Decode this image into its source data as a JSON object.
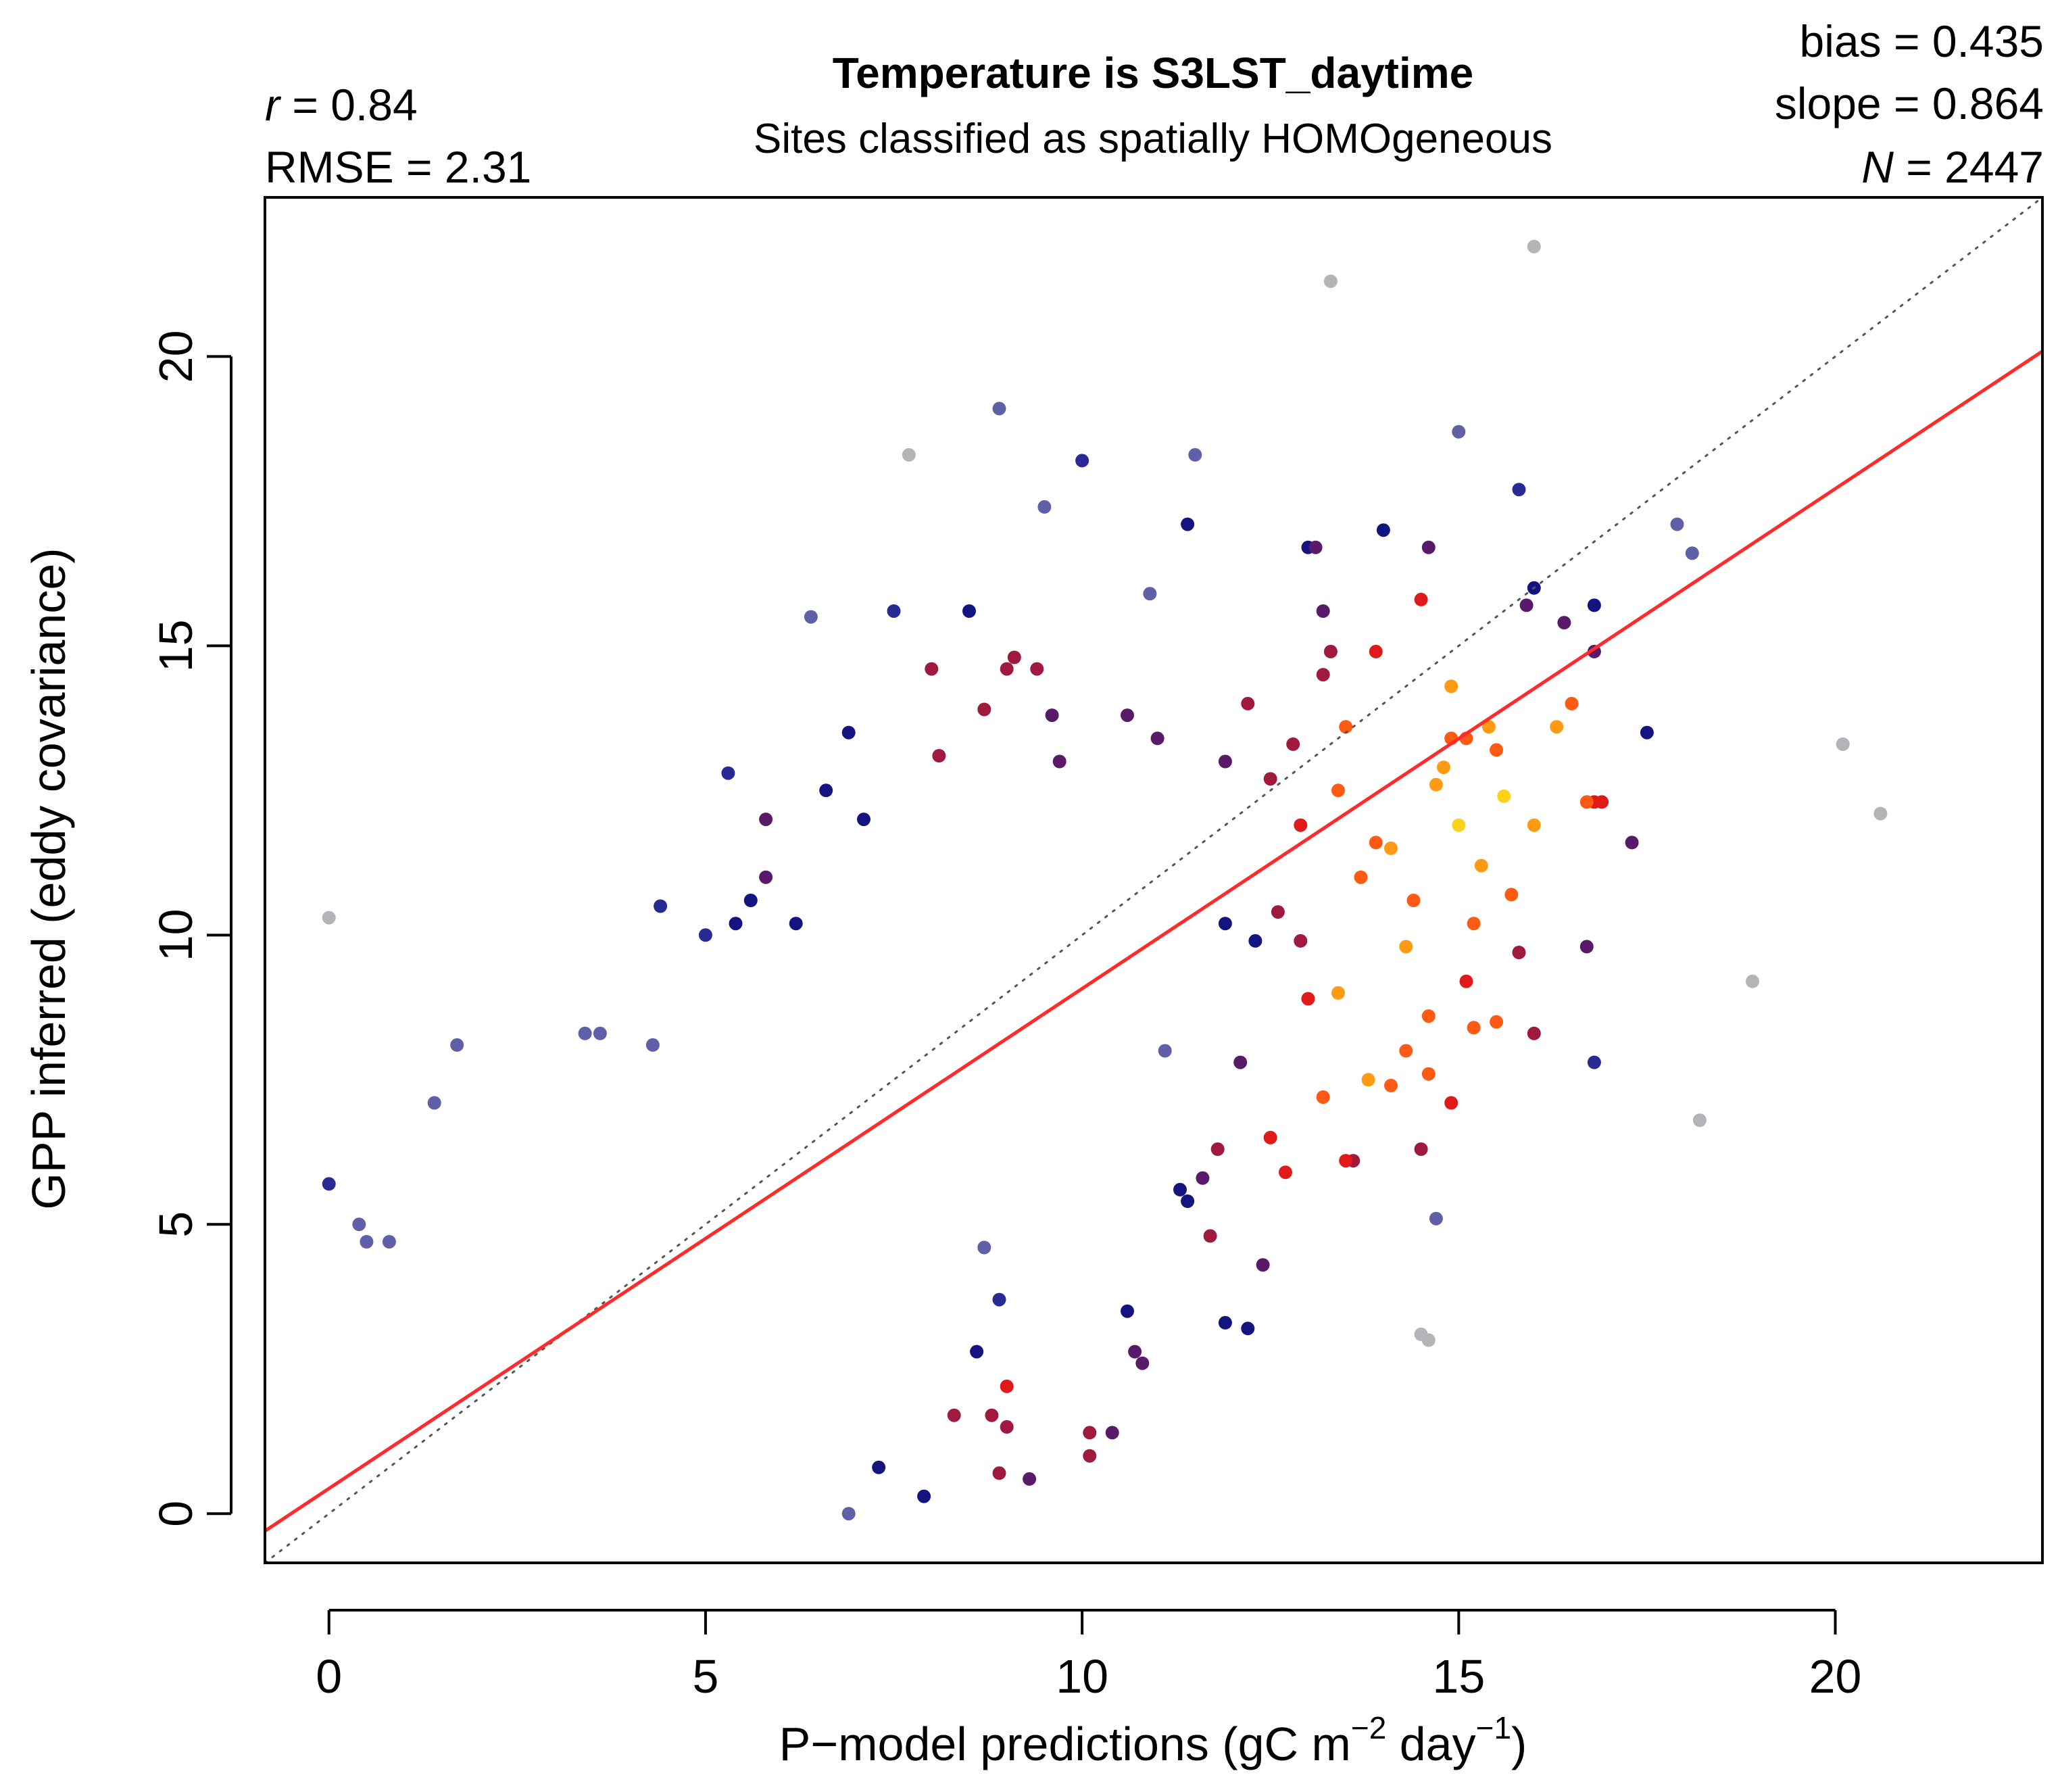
{
  "chart_data": {
    "type": "scatter",
    "title": "Temperature is S3LST_daytime",
    "subtitle": "Sites classified as spatially HOMOgeneous",
    "xlabel": {
      "main": "P−model predictions (gC m",
      "sup1": "−2",
      "mid": " day",
      "sup2": "−1",
      "end": ")"
    },
    "ylabel": "GPP inferred (eddy covariance)",
    "xlim": [
      -0.85,
      22.75
    ],
    "ylim": [
      -0.85,
      22.75
    ],
    "xticks": [
      0,
      5,
      10,
      15,
      20
    ],
    "yticks": [
      0,
      5,
      10,
      15,
      20
    ],
    "xtick_labels": [
      "0",
      "5",
      "10",
      "15",
      "20"
    ],
    "ytick_labels": [
      "0",
      "5",
      "10",
      "15",
      "20"
    ],
    "grid": false,
    "stats": {
      "r_symbol": "r",
      "r_value": " = 0.84",
      "rmse": "RMSE = 2.31",
      "bias": "bias = 0.435",
      "slope": "slope = 0.864",
      "n_symbol": "N",
      "n_value": " = 2447"
    },
    "regression_line": {
      "intercept": 0.435,
      "slope": 0.864,
      "color": "#ff2a2a"
    },
    "identity_line": {
      "slope": 1,
      "intercept": 0,
      "style": "dotted",
      "color": "#555555"
    },
    "density_colors": [
      "#b3b3b8",
      "#6060a8",
      "#2a2a95",
      "#141480",
      "#5a1a6a",
      "#a01a40",
      "#e01a1a",
      "#ff5a14",
      "#ff9a14",
      "#ffd21a"
    ],
    "points": [
      [
        0.0,
        10.3
      ],
      [
        0.0,
        5.7
      ],
      [
        1.7,
        8.1
      ],
      [
        1.4,
        7.1
      ],
      [
        0.4,
        5.0
      ],
      [
        0.5,
        4.7
      ],
      [
        0.8,
        4.7
      ],
      [
        3.4,
        8.3
      ],
      [
        3.6,
        8.3
      ],
      [
        4.3,
        8.1
      ],
      [
        5.0,
        10.0
      ],
      [
        5.4,
        10.2
      ],
      [
        5.3,
        12.8
      ],
      [
        5.6,
        10.6
      ],
      [
        4.4,
        10.5
      ],
      [
        5.8,
        11.0
      ],
      [
        6.2,
        10.2
      ],
      [
        5.8,
        12.0
      ],
      [
        6.4,
        15.5
      ],
      [
        6.6,
        12.5
      ],
      [
        6.9,
        13.5
      ],
      [
        7.1,
        12.0
      ],
      [
        7.5,
        15.6
      ],
      [
        7.7,
        18.3
      ],
      [
        8.0,
        14.6
      ],
      [
        8.1,
        13.1
      ],
      [
        8.5,
        15.6
      ],
      [
        8.7,
        13.9
      ],
      [
        8.9,
        19.1
      ],
      [
        9.1,
        14.8
      ],
      [
        9.0,
        14.6
      ],
      [
        9.4,
        14.6
      ],
      [
        9.7,
        13.0
      ],
      [
        9.6,
        13.8
      ],
      [
        10.0,
        18.2
      ],
      [
        9.5,
        17.4
      ],
      [
        10.6,
        13.8
      ],
      [
        10.9,
        15.9
      ],
      [
        11.0,
        13.4
      ],
      [
        11.4,
        17.1
      ],
      [
        11.5,
        18.3
      ],
      [
        11.9,
        13.0
      ],
      [
        12.2,
        14.0
      ],
      [
        12.5,
        12.7
      ],
      [
        12.8,
        13.3
      ],
      [
        13.0,
        16.7
      ],
      [
        13.1,
        16.7
      ],
      [
        13.3,
        21.3
      ],
      [
        13.2,
        15.6
      ],
      [
        13.3,
        14.9
      ],
      [
        13.2,
        14.5
      ],
      [
        13.9,
        14.9
      ],
      [
        14.0,
        17.0
      ],
      [
        14.5,
        15.8
      ],
      [
        14.6,
        16.7
      ],
      [
        14.9,
        14.3
      ],
      [
        15.0,
        18.7
      ],
      [
        15.4,
        13.6
      ],
      [
        15.8,
        17.7
      ],
      [
        15.9,
        15.7
      ],
      [
        16.0,
        16.0
      ],
      [
        16.0,
        21.9
      ],
      [
        16.3,
        13.6
      ],
      [
        16.4,
        15.4
      ],
      [
        16.5,
        14.0
      ],
      [
        16.7,
        12.3
      ],
      [
        16.8,
        15.7
      ],
      [
        16.8,
        12.3
      ],
      [
        16.9,
        12.3
      ],
      [
        16.8,
        14.9
      ],
      [
        17.3,
        11.6
      ],
      [
        17.5,
        13.5
      ],
      [
        17.9,
        17.1
      ],
      [
        18.1,
        16.6
      ],
      [
        18.2,
        6.8
      ],
      [
        18.9,
        9.2
      ],
      [
        20.1,
        13.3
      ],
      [
        20.6,
        12.1
      ],
      [
        16.0,
        11.9
      ],
      [
        15.8,
        9.7
      ],
      [
        16.0,
        8.3
      ],
      [
        16.7,
        9.8
      ],
      [
        16.8,
        7.8
      ],
      [
        15.2,
        8.4
      ],
      [
        14.9,
        7.1
      ],
      [
        14.6,
        7.6
      ],
      [
        15.2,
        10.2
      ],
      [
        14.5,
        6.3
      ],
      [
        14.7,
        5.1
      ],
      [
        14.5,
        3.1
      ],
      [
        14.6,
        3.0
      ],
      [
        13.6,
        6.1
      ],
      [
        12.7,
        5.9
      ],
      [
        12.2,
        3.2
      ],
      [
        11.9,
        3.3
      ],
      [
        12.4,
        4.3
      ],
      [
        11.7,
        4.8
      ],
      [
        11.4,
        5.4
      ],
      [
        10.6,
        3.5
      ],
      [
        10.8,
        2.6
      ],
      [
        10.7,
        2.8
      ],
      [
        10.4,
        1.4
      ],
      [
        10.1,
        1.0
      ],
      [
        10.1,
        1.4
      ],
      [
        9.3,
        0.6
      ],
      [
        8.9,
        0.7
      ],
      [
        9.0,
        1.5
      ],
      [
        8.8,
        1.7
      ],
      [
        8.3,
        1.7
      ],
      [
        8.6,
        2.8
      ],
      [
        9.0,
        2.2
      ],
      [
        8.9,
        3.7
      ],
      [
        8.7,
        4.6
      ],
      [
        7.9,
        0.3
      ],
      [
        6.9,
        0.0
      ],
      [
        7.3,
        0.8
      ],
      [
        11.1,
        8.0
      ],
      [
        11.6,
        5.8
      ],
      [
        11.3,
        5.6
      ],
      [
        11.8,
        6.3
      ],
      [
        12.1,
        7.8
      ],
      [
        12.5,
        6.5
      ],
      [
        13.2,
        7.2
      ],
      [
        13.5,
        6.1
      ],
      [
        13.0,
        8.9
      ],
      [
        13.8,
        7.5
      ],
      [
        14.1,
        7.4
      ],
      [
        14.3,
        8.0
      ],
      [
        13.4,
        9.0
      ],
      [
        12.9,
        9.9
      ],
      [
        14.3,
        9.8
      ],
      [
        14.6,
        8.6
      ],
      [
        15.1,
        9.2
      ],
      [
        15.5,
        8.5
      ],
      [
        15.7,
        10.7
      ],
      [
        15.6,
        12.4
      ],
      [
        15.3,
        11.2
      ],
      [
        15.0,
        11.9
      ],
      [
        14.7,
        12.6
      ],
      [
        14.8,
        12.9
      ],
      [
        14.9,
        13.4
      ],
      [
        15.1,
        13.4
      ],
      [
        15.5,
        13.2
      ],
      [
        13.5,
        13.6
      ],
      [
        13.4,
        12.5
      ],
      [
        12.9,
        11.9
      ],
      [
        13.9,
        11.6
      ],
      [
        14.1,
        11.5
      ],
      [
        14.4,
        10.6
      ],
      [
        13.7,
        11.0
      ],
      [
        12.6,
        10.4
      ],
      [
        12.3,
        9.9
      ],
      [
        11.9,
        10.2
      ]
    ]
  }
}
